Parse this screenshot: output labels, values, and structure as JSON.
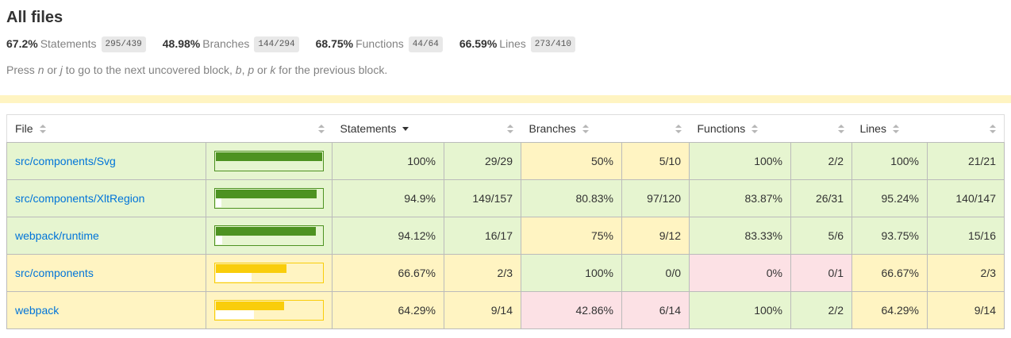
{
  "header": {
    "title": "All files",
    "metrics": [
      {
        "pct": "67.2%",
        "label": "Statements",
        "fraction": "295/439"
      },
      {
        "pct": "48.98%",
        "label": "Branches",
        "fraction": "144/294"
      },
      {
        "pct": "68.75%",
        "label": "Functions",
        "fraction": "44/64"
      },
      {
        "pct": "66.59%",
        "label": "Lines",
        "fraction": "273/410"
      }
    ],
    "hint_parts": [
      {
        "text": "Press "
      },
      {
        "text": "n",
        "em": true
      },
      {
        "text": " or "
      },
      {
        "text": "j",
        "em": true
      },
      {
        "text": " to go to the next uncovered block, "
      },
      {
        "text": "b",
        "em": true
      },
      {
        "text": ", "
      },
      {
        "text": "p",
        "em": true
      },
      {
        "text": " or "
      },
      {
        "text": "k",
        "em": true
      },
      {
        "text": " for the previous block."
      }
    ]
  },
  "colors": {
    "status_line": "#f9cd0b",
    "high_bg": "#e6f5d0",
    "medium_bg": "#fff4c2",
    "low_bg": "#fce1e5",
    "high_accent": "#4d9221",
    "medium_accent": "#f9cd0b",
    "link": "#0074d9",
    "fraction_bg": "#e8e8e8"
  },
  "table": {
    "columns": {
      "file": "File",
      "statements": "Statements",
      "branches": "Branches",
      "functions": "Functions",
      "lines": "Lines"
    },
    "sort": {
      "column": "Statements",
      "direction": "desc"
    },
    "rows": [
      {
        "file": "src/components/Svg",
        "chart": {
          "fill_pct": 100,
          "status": "high"
        },
        "statements": {
          "pct": "100%",
          "fraction": "29/29",
          "status": "high"
        },
        "branches": {
          "pct": "50%",
          "fraction": "5/10",
          "status": "medium"
        },
        "functions": {
          "pct": "100%",
          "fraction": "2/2",
          "status": "high"
        },
        "lines": {
          "pct": "100%",
          "fraction": "21/21",
          "status": "high"
        }
      },
      {
        "file": "src/components/XltRegion",
        "chart": {
          "fill_pct": 94.9,
          "status": "high"
        },
        "statements": {
          "pct": "94.9%",
          "fraction": "149/157",
          "status": "high"
        },
        "branches": {
          "pct": "80.83%",
          "fraction": "97/120",
          "status": "high"
        },
        "functions": {
          "pct": "83.87%",
          "fraction": "26/31",
          "status": "high"
        },
        "lines": {
          "pct": "95.24%",
          "fraction": "140/147",
          "status": "high"
        }
      },
      {
        "file": "webpack/runtime",
        "chart": {
          "fill_pct": 94.12,
          "status": "high"
        },
        "statements": {
          "pct": "94.12%",
          "fraction": "16/17",
          "status": "high"
        },
        "branches": {
          "pct": "75%",
          "fraction": "9/12",
          "status": "medium"
        },
        "functions": {
          "pct": "83.33%",
          "fraction": "5/6",
          "status": "high"
        },
        "lines": {
          "pct": "93.75%",
          "fraction": "15/16",
          "status": "high"
        }
      },
      {
        "file": "src/components",
        "chart": {
          "fill_pct": 66.67,
          "status": "medium"
        },
        "statements": {
          "pct": "66.67%",
          "fraction": "2/3",
          "status": "medium"
        },
        "branches": {
          "pct": "100%",
          "fraction": "0/0",
          "status": "high"
        },
        "functions": {
          "pct": "0%",
          "fraction": "0/1",
          "status": "low"
        },
        "lines": {
          "pct": "66.67%",
          "fraction": "2/3",
          "status": "medium"
        }
      },
      {
        "file": "webpack",
        "chart": {
          "fill_pct": 64.29,
          "status": "medium"
        },
        "statements": {
          "pct": "64.29%",
          "fraction": "9/14",
          "status": "medium"
        },
        "branches": {
          "pct": "42.86%",
          "fraction": "6/14",
          "status": "low"
        },
        "functions": {
          "pct": "100%",
          "fraction": "2/2",
          "status": "high"
        },
        "lines": {
          "pct": "64.29%",
          "fraction": "9/14",
          "status": "medium"
        }
      }
    ]
  }
}
